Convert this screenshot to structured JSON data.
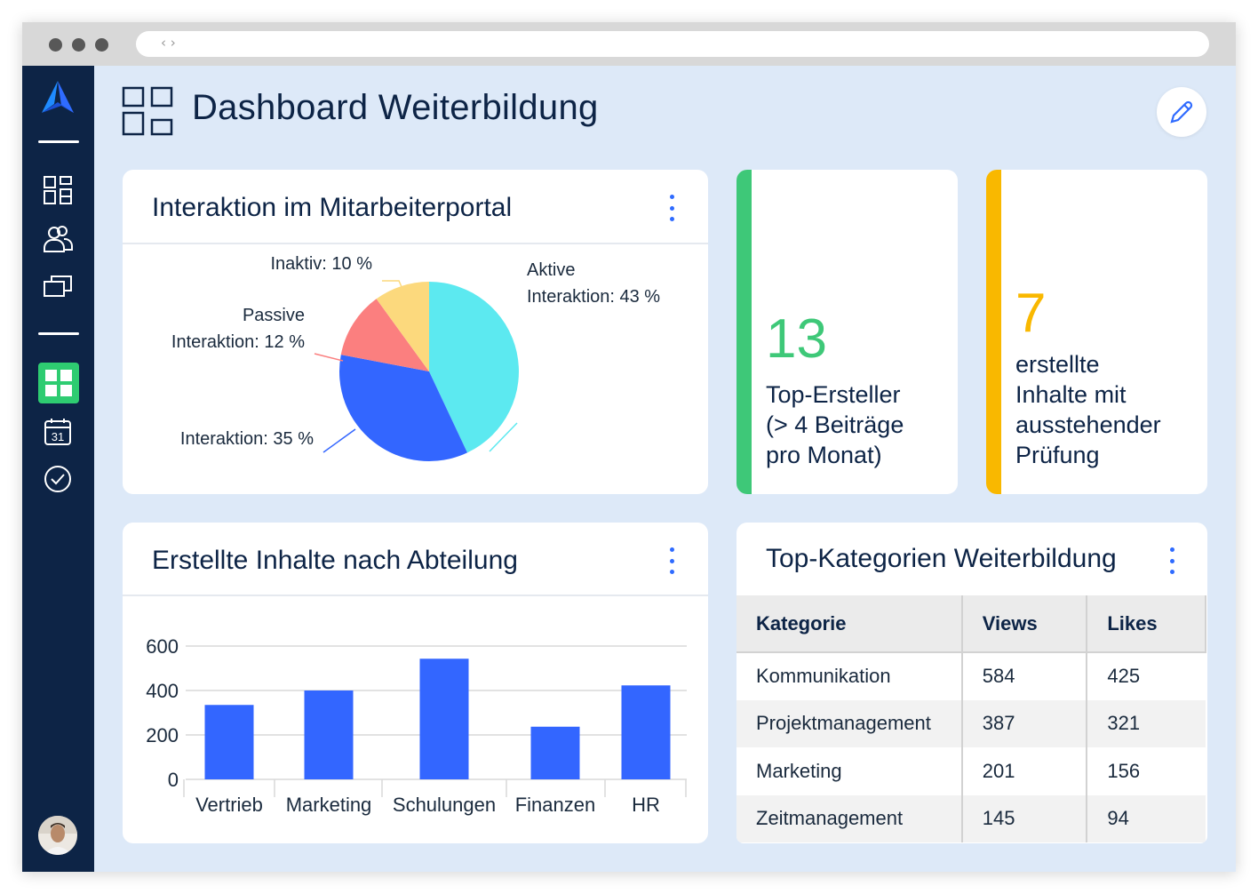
{
  "page": {
    "title": "Dashboard Weiterbildung"
  },
  "browser": {
    "nav_glyph": "‹ ›"
  },
  "sidebar": {
    "items": [
      {
        "icon": "logo-icon"
      },
      {
        "icon": "dashboard-grid-icon"
      },
      {
        "icon": "users-icon"
      },
      {
        "icon": "modules-icon"
      },
      {
        "icon": "dashboard-active-icon",
        "active": true
      },
      {
        "icon": "calendar-icon",
        "label": "31"
      },
      {
        "icon": "checkmark-icon"
      }
    ],
    "colors": {
      "bg": "#0d2446",
      "active": "#2ecc71",
      "logo": "#2f6bff"
    }
  },
  "pie_card": {
    "title": "Interaktion im Mitarbeiterportal",
    "labels": {
      "aktiv_line1": "Aktive",
      "aktiv_line2": "Interaktion: 43 %",
      "inaktiv": "Inaktiv: 10 %",
      "passiv_line1": "Passive",
      "passiv_line2": "Interaktion: 12 %",
      "other": "Interaktion: 35 %"
    }
  },
  "kpi_1": {
    "value": "13",
    "label_lines": [
      "Top-Ersteller",
      "(> 4 Beiträge",
      "pro Monat)"
    ],
    "color": "#3ec878"
  },
  "kpi_2": {
    "value": "7",
    "label_lines": [
      "erstellte",
      "Inhalte mit",
      "ausstehender",
      "Prüfung"
    ],
    "color": "#f9b800"
  },
  "bar_card": {
    "title": "Erstellte Inhalte nach Abteilung"
  },
  "table_card": {
    "title": "Top-Kategorien Weiterbildung",
    "columns": [
      "Kategorie",
      "Views",
      "Likes"
    ],
    "rows": [
      [
        "Kommunikation",
        "584",
        "425"
      ],
      [
        "Projektmanagement",
        "387",
        "321"
      ],
      [
        "Marketing",
        "201",
        "156"
      ],
      [
        "Zeitmanagement",
        "145",
        "94"
      ]
    ]
  },
  "chart_data": [
    {
      "type": "pie",
      "slices": [
        {
          "label": "Aktive Interaktion",
          "value": 43,
          "color": "#5ce9f0"
        },
        {
          "label": "Interaktion",
          "value": 35,
          "color": "#3366ff"
        },
        {
          "label": "Passive Interaktion",
          "value": 12,
          "color": "#fb7f7f"
        },
        {
          "label": "Inaktiv",
          "value": 10,
          "color": "#fcd97d"
        }
      ]
    },
    {
      "type": "bar",
      "categories": [
        "Vertrieb",
        "Marketing",
        "Schulungen",
        "Finanzen",
        "HR"
      ],
      "values": [
        335,
        400,
        543,
        237,
        423
      ],
      "ylim": [
        0,
        600
      ],
      "yticks": [
        0,
        200,
        400,
        600
      ],
      "grid": true,
      "color": "#3366ff"
    }
  ]
}
